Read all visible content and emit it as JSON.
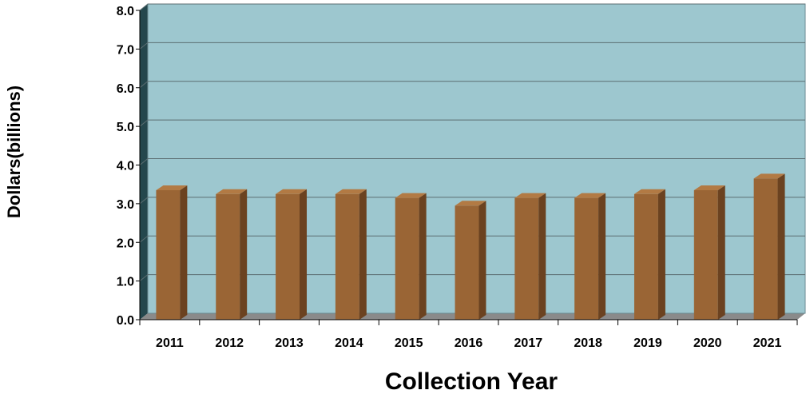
{
  "colors": {
    "plot_background": "#9dc7cf",
    "side_wall": "#24474d",
    "floor": "#8a8a8a",
    "bar_front": "#9a6535",
    "bar_side": "#6b4220",
    "bar_top": "#b27a44",
    "gridline": "#5c6e72"
  },
  "chart_data": {
    "type": "bar",
    "three_d": true,
    "title": "",
    "xlabel": "Collection Year",
    "ylabel": "Dollars(billions)",
    "categories": [
      "2011",
      "2012",
      "2013",
      "2014",
      "2015",
      "2016",
      "2017",
      "2018",
      "2019",
      "2020",
      "2021"
    ],
    "values": [
      3.35,
      3.25,
      3.25,
      3.25,
      3.15,
      2.95,
      3.15,
      3.15,
      3.25,
      3.35,
      3.65
    ],
    "ylim": [
      0,
      8
    ],
    "yticks": [
      "0.0",
      "1.0",
      "2.0",
      "3.0",
      "4.0",
      "5.0",
      "6.0",
      "7.0",
      "8.0"
    ],
    "grid": true,
    "legend": "none"
  }
}
